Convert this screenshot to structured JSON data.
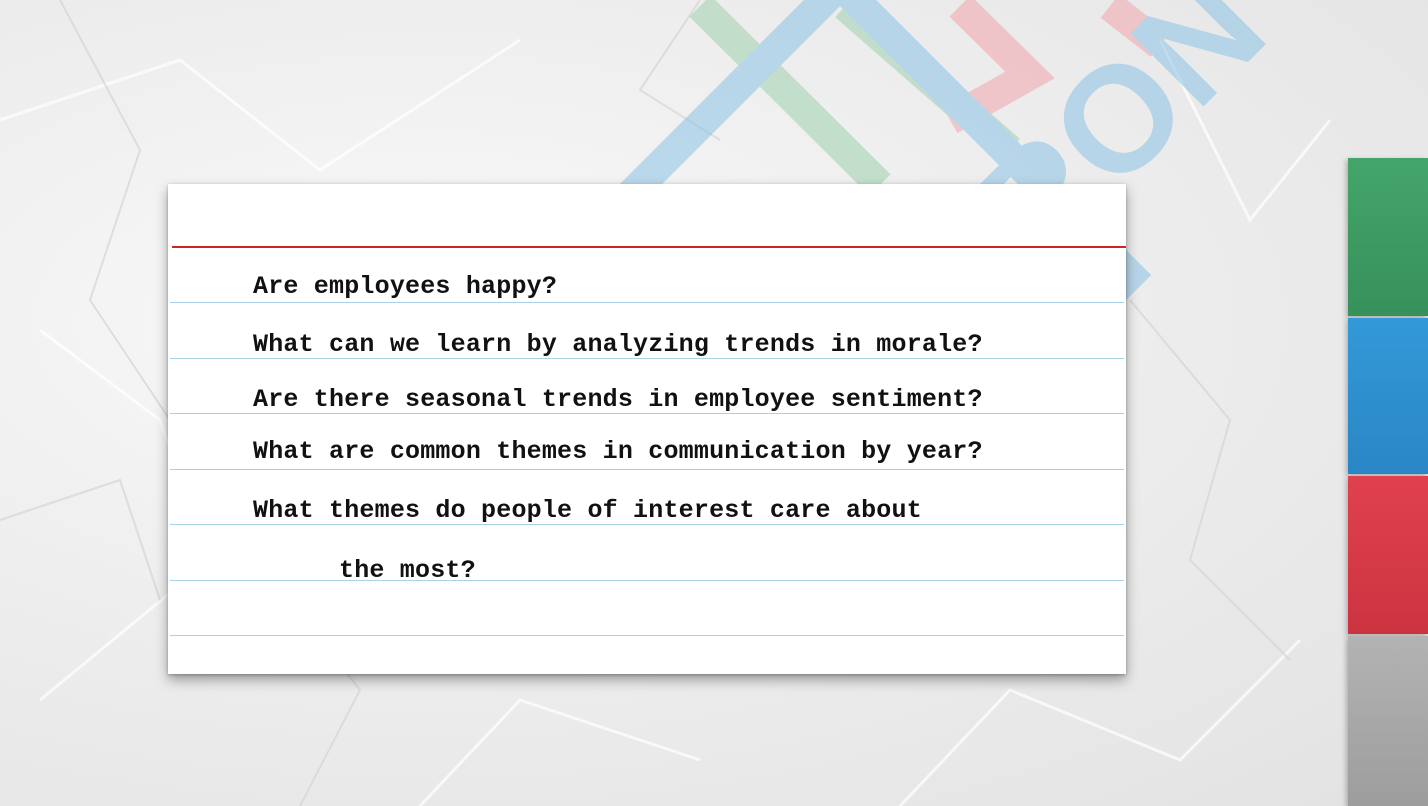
{
  "colors": {
    "card_rule": "#a9d2e6",
    "card_margin_line": "#c8262b",
    "logo_blue": "#8cc3e6",
    "logo_green": "#9fd2b0",
    "logo_red": "#f2a6ad",
    "tab_green": "#3d9a62",
    "tab_blue": "#2f8fd1",
    "tab_red": "#d83a48",
    "tab_gray": "#a9a9a9"
  },
  "watermark": {
    "logo_text": "ENRON",
    "registered_mark": "®"
  },
  "card": {
    "questions": [
      "Are employees happy?",
      "What can we learn by analyzing trends in morale?",
      "Are there seasonal trends in employee sentiment?",
      "What are common themes in communication by year?",
      "What themes do people of interest care about",
      "the most?"
    ]
  }
}
